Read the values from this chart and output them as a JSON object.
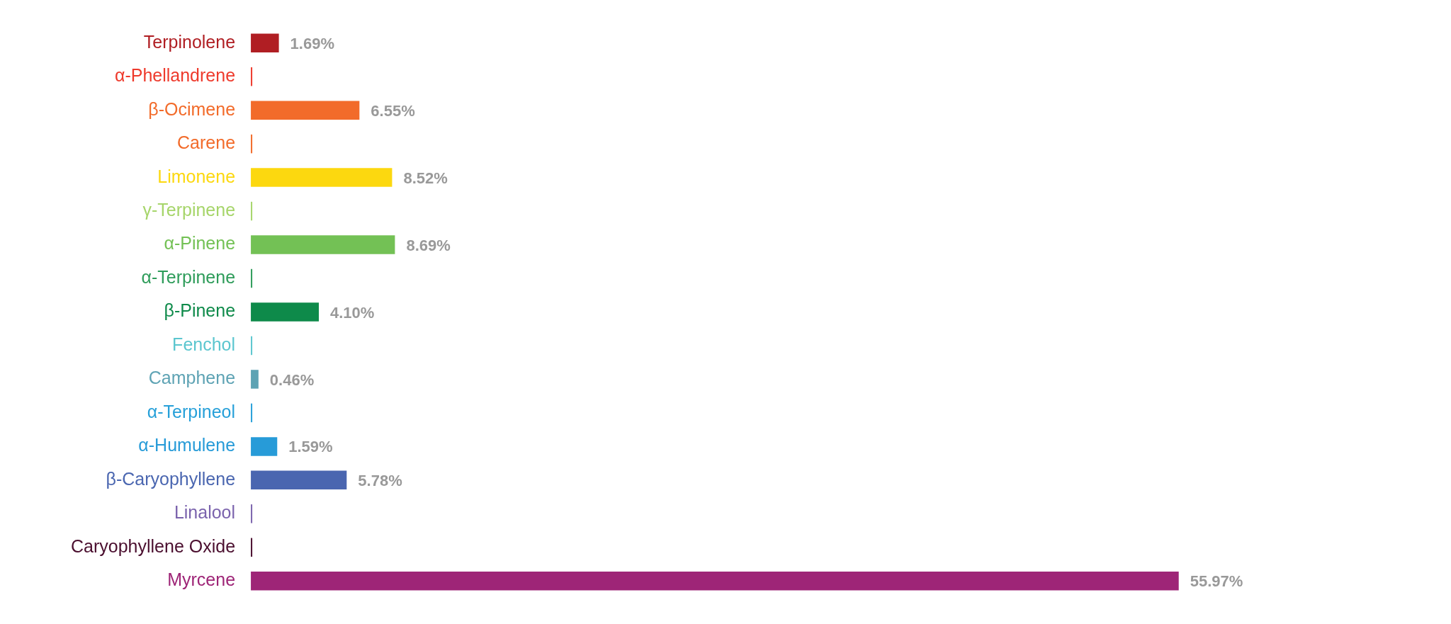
{
  "chart_data": {
    "type": "bar",
    "orientation": "horizontal",
    "categories": [
      "Terpinolene",
      "α-Phellandrene",
      "β-Ocimene",
      "Carene",
      "Limonene",
      "γ-Terpinene",
      "α-Pinene",
      "α-Terpinene",
      "β-Pinene",
      "Fenchol",
      "Camphene",
      "α-Terpineol",
      "α-Humulene",
      "β-Caryophyllene",
      "Linalool",
      "Caryophyllene Oxide",
      "Myrcene"
    ],
    "values": [
      1.69,
      0,
      6.55,
      0,
      8.52,
      0,
      8.69,
      0,
      4.1,
      0,
      0.46,
      0,
      1.59,
      5.78,
      0,
      0,
      55.97
    ],
    "value_labels": [
      "1.69%",
      null,
      "6.55%",
      null,
      "8.52%",
      null,
      "8.69%",
      null,
      "4.10%",
      null,
      "0.46%",
      null,
      "1.59%",
      "5.78%",
      null,
      null,
      "55.97%"
    ],
    "colors": [
      "#b01e23",
      "#ee3a2c",
      "#f26b2a",
      "#f26b2a",
      "#fcd80f",
      "#a6d56a",
      "#73c155",
      "#2e9c5a",
      "#0e8a4a",
      "#5bc6cf",
      "#5ea3b4",
      "#27a0d9",
      "#279bd8",
      "#4a66b0",
      "#7b63ad",
      "#4a0e2e",
      "#9e2577"
    ],
    "grid": false,
    "legend": false
  }
}
